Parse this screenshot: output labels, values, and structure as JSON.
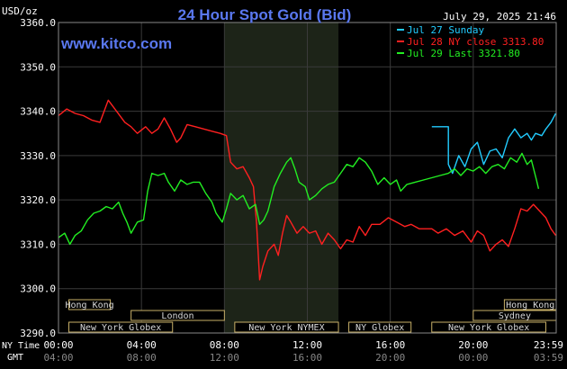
{
  "chart_data": {
    "type": "line",
    "title": "24 Hour Spot Gold (Bid)",
    "source": "www.kitco.com",
    "datetime": "July 29, 2025 21:46",
    "ylabel": "USD/oz",
    "ylim": [
      3290,
      3360
    ],
    "y_ticks": [
      "3360.0",
      "3350.0",
      "3340.0",
      "3330.0",
      "3320.0",
      "3310.0",
      "3300.0",
      "3290.0"
    ],
    "x_axis": {
      "ny_label": "NY Time",
      "gmt_label": "GMT",
      "ny_ticks": [
        "00:00",
        "04:00",
        "08:00",
        "12:00",
        "16:00",
        "20:00",
        "23:59"
      ],
      "gmt_ticks": [
        "04:00",
        "08:00",
        "12:00",
        "16:00",
        "20:00",
        "00:00",
        "03:59"
      ]
    },
    "grid": true,
    "legend_position": "top-right",
    "series": [
      {
        "name": "Jul 27 Sunday",
        "color": "#22ccff",
        "points": [
          [
            18.0,
            3336.5
          ],
          [
            18.8,
            3336.5
          ],
          [
            18.8,
            3328.0
          ],
          [
            19.0,
            3326.0
          ],
          [
            19.3,
            3330.0
          ],
          [
            19.6,
            3327.5
          ],
          [
            19.9,
            3331.5
          ],
          [
            20.2,
            3333.0
          ],
          [
            20.5,
            3328.0
          ],
          [
            20.8,
            3331.0
          ],
          [
            21.1,
            3331.5
          ],
          [
            21.4,
            3329.5
          ],
          [
            21.7,
            3334.0
          ],
          [
            22.0,
            3336.0
          ],
          [
            22.3,
            3334.0
          ],
          [
            22.6,
            3335.0
          ],
          [
            22.8,
            3333.5
          ],
          [
            23.0,
            3335.0
          ],
          [
            23.3,
            3334.5
          ],
          [
            23.5,
            3336.0
          ],
          [
            23.75,
            3337.5
          ],
          [
            23.98,
            3339.5
          ]
        ]
      },
      {
        "name": "Jul 28 NY close 3313.80",
        "color": "#ff2020",
        "points": [
          [
            0.0,
            3339.0
          ],
          [
            0.4,
            3340.5
          ],
          [
            0.8,
            3339.5
          ],
          [
            1.2,
            3339.0
          ],
          [
            1.6,
            3338.0
          ],
          [
            2.0,
            3337.5
          ],
          [
            2.4,
            3342.5
          ],
          [
            2.8,
            3340.0
          ],
          [
            3.2,
            3337.5
          ],
          [
            3.5,
            3336.5
          ],
          [
            3.8,
            3335.0
          ],
          [
            4.2,
            3336.5
          ],
          [
            4.5,
            3335.0
          ],
          [
            4.8,
            3336.0
          ],
          [
            5.1,
            3338.5
          ],
          [
            5.4,
            3336.0
          ],
          [
            5.7,
            3333.0
          ],
          [
            5.9,
            3334.0
          ],
          [
            6.2,
            3337.0
          ],
          [
            6.6,
            3336.5
          ],
          [
            7.0,
            3336.0
          ],
          [
            7.4,
            3335.5
          ],
          [
            7.8,
            3335.0
          ],
          [
            8.1,
            3334.5
          ],
          [
            8.3,
            3328.5
          ],
          [
            8.6,
            3327.0
          ],
          [
            8.9,
            3327.5
          ],
          [
            9.2,
            3325.0
          ],
          [
            9.4,
            3323.0
          ],
          [
            9.55,
            3315.0
          ],
          [
            9.7,
            3302.0
          ],
          [
            9.85,
            3305.0
          ],
          [
            10.1,
            3308.5
          ],
          [
            10.4,
            3310.0
          ],
          [
            10.6,
            3307.5
          ],
          [
            10.8,
            3312.5
          ],
          [
            11.0,
            3316.5
          ],
          [
            11.2,
            3315.0
          ],
          [
            11.5,
            3312.5
          ],
          [
            11.8,
            3314.0
          ],
          [
            12.1,
            3312.5
          ],
          [
            12.4,
            3313.0
          ],
          [
            12.7,
            3310.0
          ],
          [
            13.0,
            3312.5
          ],
          [
            13.3,
            3311.0
          ],
          [
            13.6,
            3309.0
          ],
          [
            13.9,
            3311.0
          ],
          [
            14.2,
            3310.5
          ],
          [
            14.5,
            3314.0
          ],
          [
            14.8,
            3312.0
          ],
          [
            15.1,
            3314.5
          ],
          [
            15.5,
            3314.5
          ],
          [
            15.9,
            3316.0
          ],
          [
            16.3,
            3315.0
          ],
          [
            16.7,
            3314.0
          ],
          [
            17.0,
            3314.5
          ],
          [
            17.4,
            3313.5
          ],
          [
            17.8,
            3313.5
          ],
          [
            18.0,
            3313.5
          ],
          [
            18.3,
            3312.5
          ],
          [
            18.7,
            3313.5
          ],
          [
            19.1,
            3312.0
          ],
          [
            19.5,
            3313.0
          ],
          [
            19.9,
            3310.5
          ],
          [
            20.2,
            3313.0
          ],
          [
            20.5,
            3312.0
          ],
          [
            20.8,
            3308.5
          ],
          [
            21.1,
            3310.0
          ],
          [
            21.4,
            3311.0
          ],
          [
            21.7,
            3309.5
          ],
          [
            22.0,
            3313.5
          ],
          [
            22.3,
            3318.0
          ],
          [
            22.6,
            3317.5
          ],
          [
            22.9,
            3319.0
          ],
          [
            23.2,
            3317.5
          ],
          [
            23.5,
            3316.0
          ],
          [
            23.75,
            3313.5
          ],
          [
            23.98,
            3312.0
          ]
        ]
      },
      {
        "name": "Jul 29 Last 3321.80",
        "color": "#22ee22",
        "points": [
          [
            0.0,
            3311.5
          ],
          [
            0.3,
            3312.5
          ],
          [
            0.55,
            3310.0
          ],
          [
            0.8,
            3312.0
          ],
          [
            1.1,
            3313.0
          ],
          [
            1.4,
            3315.5
          ],
          [
            1.7,
            3317.0
          ],
          [
            2.0,
            3317.5
          ],
          [
            2.3,
            3318.5
          ],
          [
            2.6,
            3318.0
          ],
          [
            2.9,
            3319.5
          ],
          [
            3.1,
            3317.0
          ],
          [
            3.3,
            3315.0
          ],
          [
            3.5,
            3312.5
          ],
          [
            3.8,
            3315.0
          ],
          [
            4.1,
            3315.5
          ],
          [
            4.3,
            3322.0
          ],
          [
            4.5,
            3326.0
          ],
          [
            4.8,
            3325.5
          ],
          [
            5.1,
            3326.0
          ],
          [
            5.3,
            3324.0
          ],
          [
            5.6,
            3322.0
          ],
          [
            5.9,
            3324.5
          ],
          [
            6.2,
            3323.5
          ],
          [
            6.5,
            3324.0
          ],
          [
            6.8,
            3324.0
          ],
          [
            7.1,
            3321.5
          ],
          [
            7.4,
            3319.5
          ],
          [
            7.6,
            3317.0
          ],
          [
            7.9,
            3315.0
          ],
          [
            8.1,
            3318.0
          ],
          [
            8.3,
            3321.5
          ],
          [
            8.6,
            3320.0
          ],
          [
            8.9,
            3321.0
          ],
          [
            9.2,
            3318.0
          ],
          [
            9.5,
            3319.0
          ],
          [
            9.7,
            3314.5
          ],
          [
            9.9,
            3315.5
          ],
          [
            10.1,
            3317.5
          ],
          [
            10.4,
            3323.0
          ],
          [
            10.7,
            3326.0
          ],
          [
            11.0,
            3328.5
          ],
          [
            11.2,
            3329.5
          ],
          [
            11.4,
            3327.0
          ],
          [
            11.6,
            3324.0
          ],
          [
            11.9,
            3323.0
          ],
          [
            12.1,
            3320.0
          ],
          [
            12.4,
            3321.0
          ],
          [
            12.7,
            3322.5
          ],
          [
            13.0,
            3323.5
          ],
          [
            13.3,
            3324.0
          ],
          [
            13.6,
            3326.0
          ],
          [
            13.9,
            3328.0
          ],
          [
            14.2,
            3327.5
          ],
          [
            14.5,
            3329.5
          ],
          [
            14.8,
            3328.5
          ],
          [
            15.1,
            3326.5
          ],
          [
            15.4,
            3323.5
          ],
          [
            15.7,
            3325.0
          ],
          [
            16.0,
            3323.5
          ],
          [
            16.3,
            3324.5
          ],
          [
            16.5,
            3322.0
          ],
          [
            16.8,
            3323.5
          ],
          [
            17.2,
            3324.0
          ],
          [
            17.6,
            3324.5
          ],
          [
            18.0,
            3325.0
          ],
          [
            18.4,
            3325.5
          ],
          [
            18.8,
            3326.0
          ],
          [
            19.1,
            3327.0
          ],
          [
            19.4,
            3325.5
          ],
          [
            19.7,
            3327.0
          ],
          [
            20.0,
            3326.5
          ],
          [
            20.3,
            3327.5
          ],
          [
            20.6,
            3326.0
          ],
          [
            20.9,
            3327.5
          ],
          [
            21.2,
            3328.0
          ],
          [
            21.5,
            3327.0
          ],
          [
            21.8,
            3329.5
          ],
          [
            22.1,
            3328.5
          ],
          [
            22.35,
            3330.5
          ],
          [
            22.6,
            3328.0
          ],
          [
            22.8,
            3329.0
          ],
          [
            23.05,
            3324.5
          ],
          [
            23.15,
            3322.5
          ]
        ]
      }
    ],
    "sessions": [
      {
        "label": "Hong Kong",
        "row": 0,
        "start": 0.5,
        "end": 2.5
      },
      {
        "label": "London",
        "row": 1,
        "start": 3.5,
        "end": 8.0
      },
      {
        "label": "New York Globex",
        "row": 2,
        "start": 0.5,
        "end": 5.5
      },
      {
        "label": "New York NYMEX",
        "row": 2,
        "start": 8.5,
        "end": 13.5
      },
      {
        "label": "NY Globex",
        "row": 2,
        "start": 14.0,
        "end": 17.0
      },
      {
        "label": "Hong Kong",
        "row": 0,
        "start": 21.5,
        "end": 24.0
      },
      {
        "label": "Sydney",
        "row": 1,
        "start": 20.0,
        "end": 24.0
      },
      {
        "label": "New York Globex",
        "row": 2,
        "start": 18.0,
        "end": 23.5
      }
    ],
    "highlight_band": [
      8.0,
      13.5
    ]
  }
}
